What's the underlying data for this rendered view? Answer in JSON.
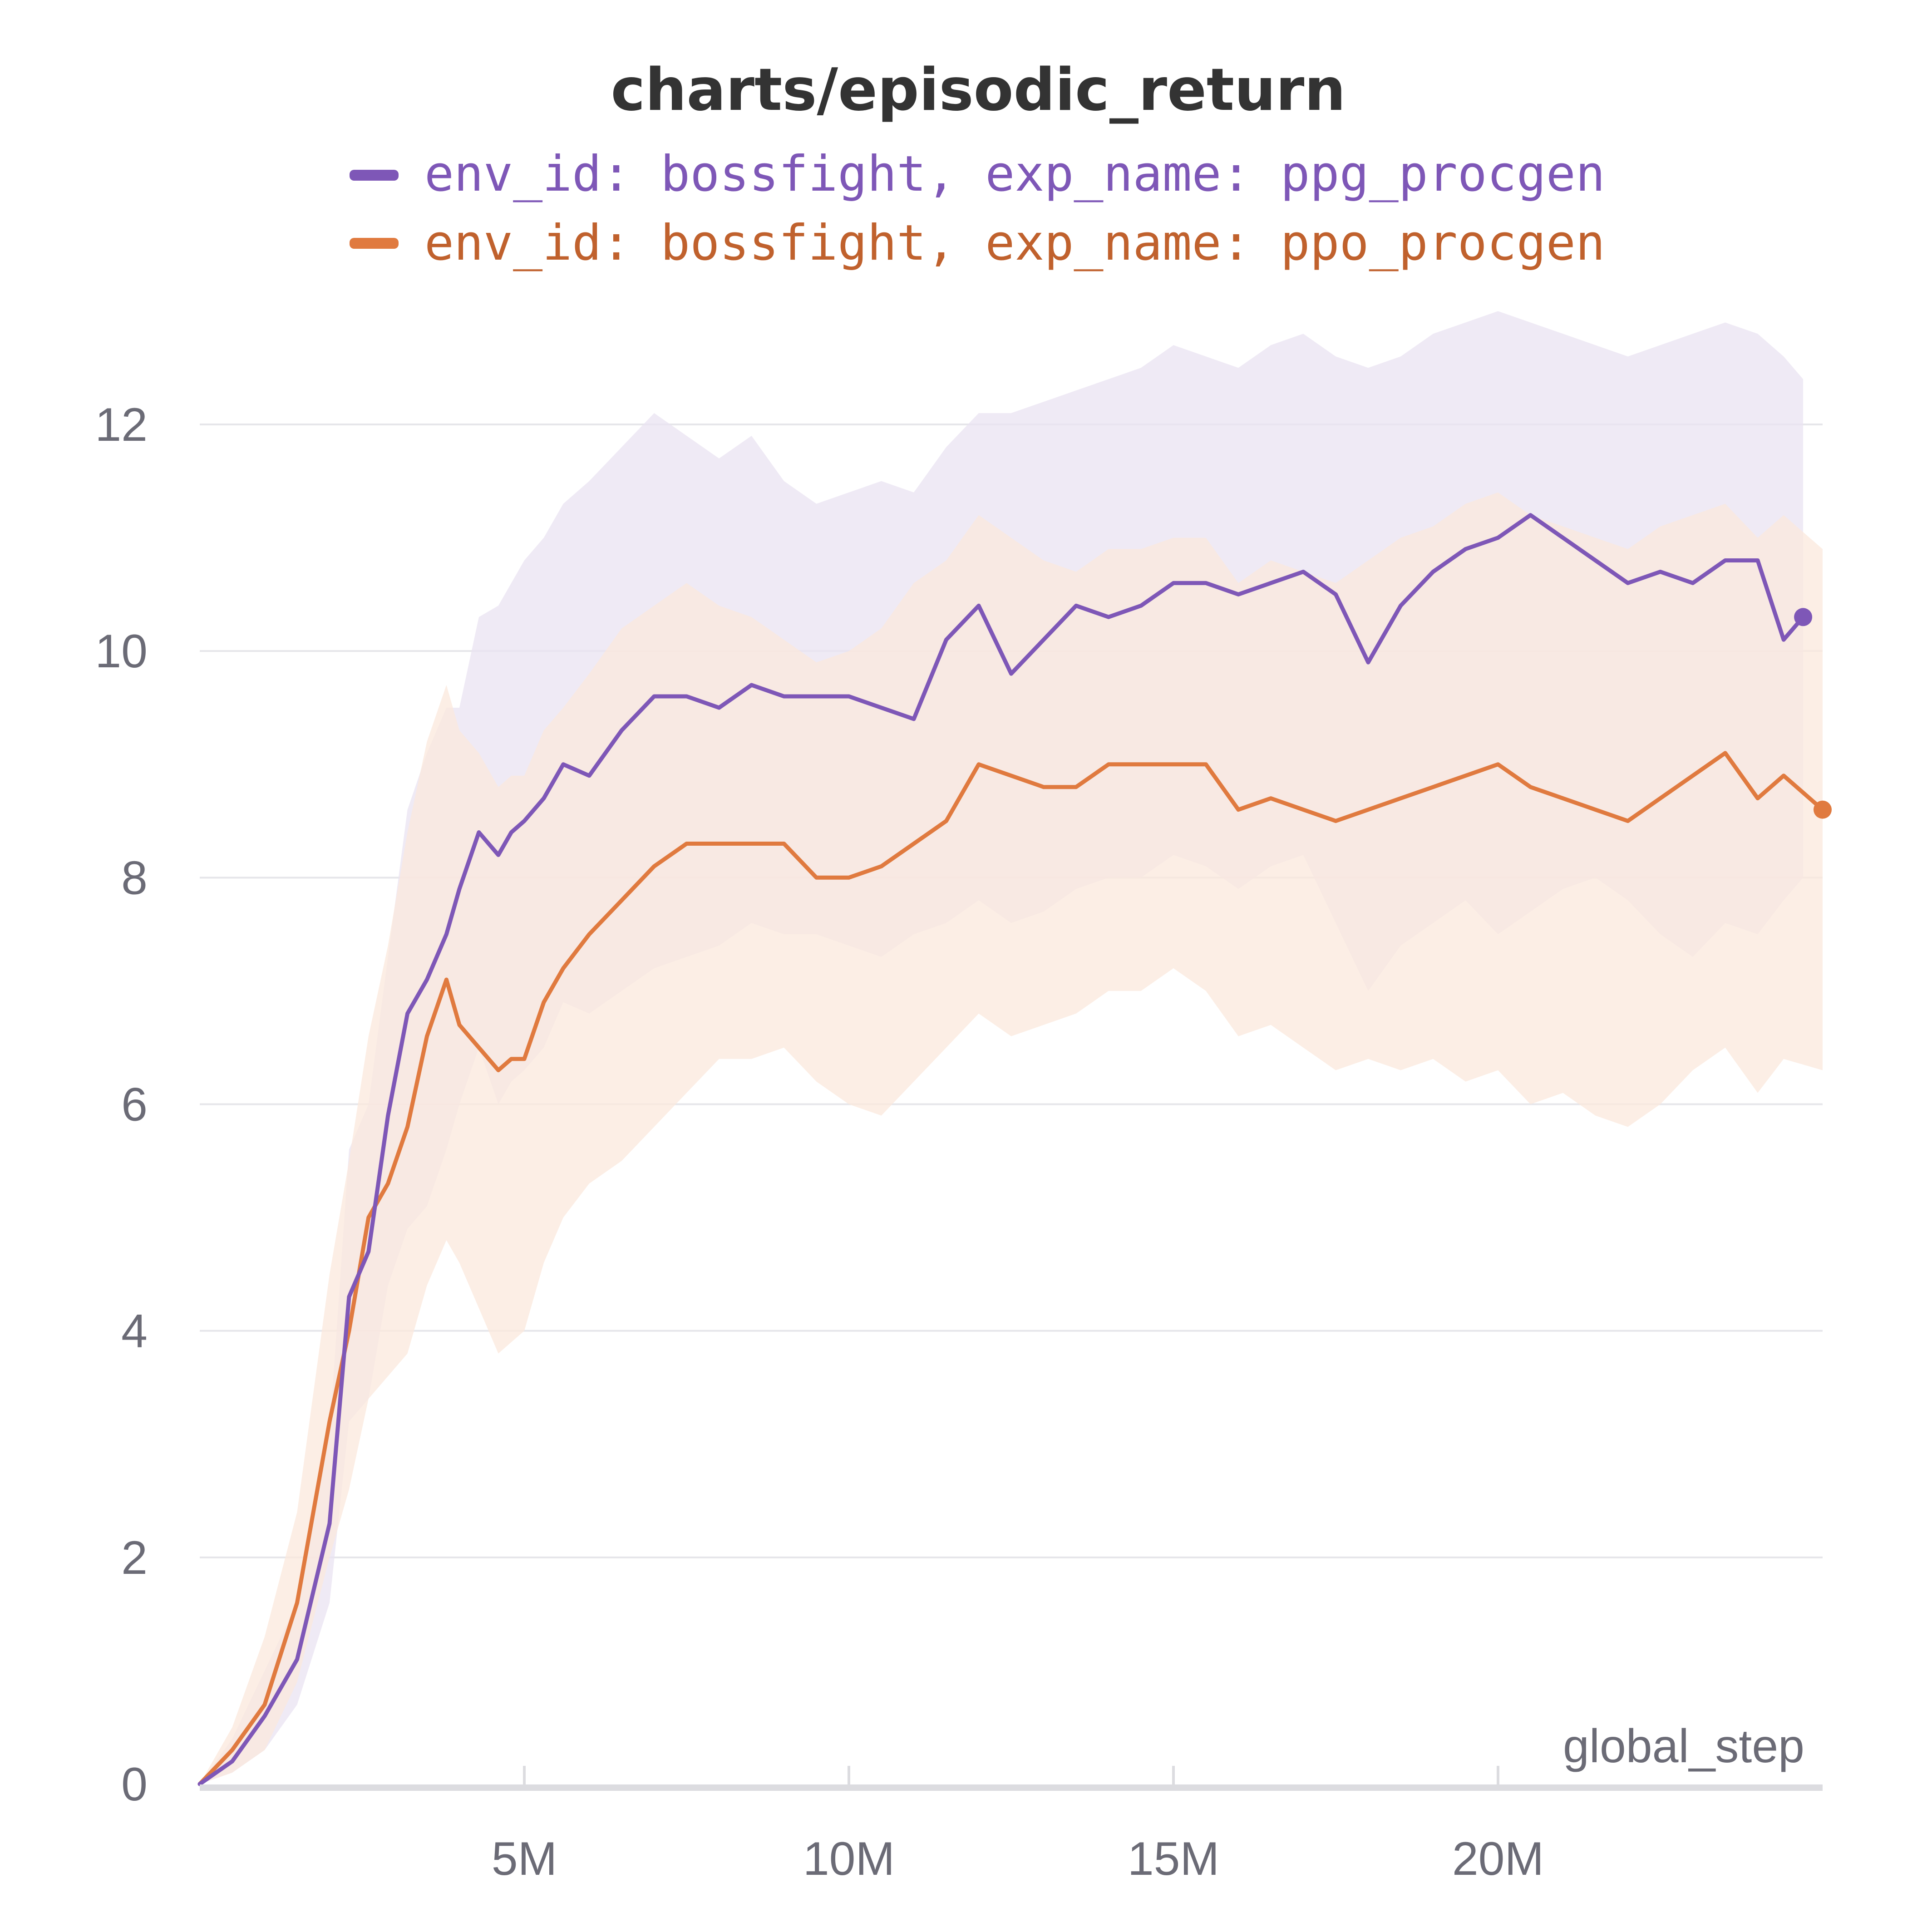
{
  "chart_data": {
    "type": "line",
    "title": "charts/episodic_return",
    "xlabel": "global_step",
    "ylabel": "",
    "xlim": [
      0,
      25000000
    ],
    "ylim": [
      0,
      12.8
    ],
    "grid": true,
    "legend_position": "top",
    "x_ticks": [
      {
        "value": 5000000,
        "label": "5M"
      },
      {
        "value": 10000000,
        "label": "10M"
      },
      {
        "value": 15000000,
        "label": "15M"
      },
      {
        "value": 20000000,
        "label": "20M"
      }
    ],
    "y_ticks": [
      {
        "value": 0,
        "label": "0"
      },
      {
        "value": 2,
        "label": "2"
      },
      {
        "value": 4,
        "label": "4"
      },
      {
        "value": 6,
        "label": "6"
      },
      {
        "value": 8,
        "label": "8"
      },
      {
        "value": 10,
        "label": "10"
      },
      {
        "value": 12,
        "label": "12"
      }
    ],
    "series": [
      {
        "name": "env_id: bossfight, exp_name: ppg_procgen",
        "color": "#7e57b7",
        "band_color": "#e9e3f2",
        "x": [
          0,
          500000,
          1000000,
          1500000,
          2000000,
          2300000,
          2600000,
          2900000,
          3200000,
          3500000,
          3800000,
          4000000,
          4300000,
          4600000,
          4800000,
          5000000,
          5300000,
          5600000,
          6000000,
          6500000,
          7000000,
          7500000,
          8000000,
          8500000,
          9000000,
          9500000,
          10000000,
          10500000,
          11000000,
          11500000,
          12000000,
          12500000,
          13000000,
          13500000,
          14000000,
          14500000,
          15000000,
          15500000,
          16000000,
          16500000,
          17000000,
          17500000,
          18000000,
          18500000,
          19000000,
          19500000,
          20000000,
          20500000,
          21000000,
          21500000,
          22000000,
          22500000,
          23000000,
          23500000,
          24000000,
          24400000,
          24700000
        ],
        "y": [
          0,
          0.2,
          0.6,
          1.1,
          2.3,
          4.3,
          4.7,
          5.9,
          6.8,
          7.1,
          7.5,
          7.9,
          8.4,
          8.2,
          8.4,
          8.5,
          8.7,
          9.0,
          8.9,
          9.3,
          9.6,
          9.6,
          9.5,
          9.7,
          9.6,
          9.6,
          9.6,
          9.5,
          9.4,
          10.1,
          10.4,
          9.8,
          10.1,
          10.4,
          10.3,
          10.4,
          10.6,
          10.6,
          10.5,
          10.6,
          10.7,
          10.5,
          9.9,
          10.4,
          10.7,
          10.9,
          11.0,
          11.2,
          11.0,
          10.8,
          10.6,
          10.7,
          10.6,
          10.8,
          10.8,
          10.1,
          10.3
        ],
        "lower": [
          0,
          0.1,
          0.3,
          0.7,
          1.6,
          3.2,
          3.4,
          4.4,
          4.9,
          5.1,
          5.6,
          6.0,
          6.5,
          6.0,
          6.2,
          6.3,
          6.5,
          6.9,
          6.8,
          7.0,
          7.2,
          7.3,
          7.4,
          7.6,
          7.5,
          7.5,
          7.4,
          7.3,
          7.5,
          7.6,
          7.8,
          7.6,
          7.7,
          7.9,
          8.0,
          8.0,
          8.2,
          8.1,
          7.9,
          8.1,
          8.2,
          7.6,
          7.0,
          7.4,
          7.6,
          7.8,
          7.5,
          7.7,
          7.9,
          8.0,
          7.8,
          7.5,
          7.3,
          7.6,
          7.5,
          7.8,
          8.0
        ],
        "upper": [
          0,
          0.4,
          1.0,
          1.6,
          3.1,
          5.6,
          6.0,
          7.3,
          8.6,
          9.1,
          9.5,
          9.5,
          10.3,
          10.4,
          10.6,
          10.8,
          11.0,
          11.3,
          11.5,
          11.8,
          12.1,
          11.9,
          11.7,
          11.9,
          11.5,
          11.3,
          11.4,
          11.5,
          11.4,
          11.8,
          12.1,
          12.1,
          12.2,
          12.3,
          12.4,
          12.5,
          12.7,
          12.6,
          12.5,
          12.7,
          12.8,
          12.6,
          12.5,
          12.6,
          12.8,
          12.9,
          13.0,
          12.9,
          12.8,
          12.7,
          12.6,
          12.7,
          12.8,
          12.9,
          12.8,
          12.6,
          12.4
        ]
      },
      {
        "name": "env_id: bossfight, exp_name: ppo_procgen",
        "color": "#e07a3f",
        "band_color": "#fbe8dc",
        "x": [
          0,
          500000,
          1000000,
          1500000,
          2000000,
          2300000,
          2600000,
          2900000,
          3200000,
          3500000,
          3800000,
          4000000,
          4300000,
          4600000,
          4800000,
          5000000,
          5300000,
          5600000,
          6000000,
          6500000,
          7000000,
          7500000,
          8000000,
          8500000,
          9000000,
          9500000,
          10000000,
          10500000,
          11000000,
          11500000,
          12000000,
          12500000,
          13000000,
          13500000,
          14000000,
          14500000,
          15000000,
          15500000,
          16000000,
          16500000,
          17000000,
          17500000,
          18000000,
          18500000,
          19000000,
          19500000,
          20000000,
          20500000,
          21000000,
          21500000,
          22000000,
          22500000,
          23000000,
          23500000,
          24000000,
          24400000,
          25000000
        ],
        "y": [
          0,
          0.3,
          0.7,
          1.6,
          3.2,
          4.0,
          5.0,
          5.3,
          5.8,
          6.6,
          7.1,
          6.7,
          6.5,
          6.3,
          6.4,
          6.4,
          6.9,
          7.2,
          7.5,
          7.8,
          8.1,
          8.3,
          8.3,
          8.3,
          8.3,
          8.0,
          8.0,
          8.1,
          8.3,
          8.5,
          9.0,
          8.9,
          8.8,
          8.8,
          9.0,
          9.0,
          9.0,
          9.0,
          8.6,
          8.7,
          8.6,
          8.5,
          8.6,
          8.7,
          8.8,
          8.9,
          9.0,
          8.8,
          8.7,
          8.6,
          8.5,
          8.7,
          8.9,
          9.1,
          8.7,
          8.9,
          8.6
        ],
        "lower": [
          0,
          0.1,
          0.3,
          0.9,
          2.0,
          2.6,
          3.4,
          3.6,
          3.8,
          4.4,
          4.8,
          4.6,
          4.2,
          3.8,
          3.9,
          4.0,
          4.6,
          5.0,
          5.3,
          5.5,
          5.8,
          6.1,
          6.4,
          6.4,
          6.5,
          6.2,
          6.0,
          5.9,
          6.2,
          6.5,
          6.8,
          6.6,
          6.7,
          6.8,
          7.0,
          7.0,
          7.2,
          7.0,
          6.6,
          6.7,
          6.5,
          6.3,
          6.4,
          6.3,
          6.4,
          6.2,
          6.3,
          6.0,
          6.1,
          5.9,
          5.8,
          6.0,
          6.3,
          6.5,
          6.1,
          6.4,
          6.3
        ],
        "upper": [
          0,
          0.5,
          1.3,
          2.4,
          4.5,
          5.5,
          6.6,
          7.4,
          8.4,
          9.2,
          9.7,
          9.3,
          9.1,
          8.8,
          8.9,
          8.9,
          9.3,
          9.5,
          9.8,
          10.2,
          10.4,
          10.6,
          10.4,
          10.3,
          10.1,
          9.9,
          10.0,
          10.2,
          10.6,
          10.8,
          11.2,
          11.0,
          10.8,
          10.7,
          10.9,
          10.9,
          11.0,
          11.0,
          10.6,
          10.8,
          10.7,
          10.6,
          10.8,
          11.0,
          11.1,
          11.3,
          11.4,
          11.2,
          11.1,
          11.0,
          10.9,
          11.1,
          11.2,
          11.3,
          11.0,
          11.2,
          10.9
        ]
      }
    ]
  }
}
